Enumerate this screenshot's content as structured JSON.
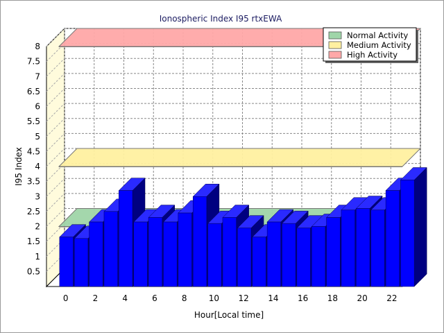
{
  "chart_data": {
    "type": "bar",
    "title": "Ionospheric Index I95 rtxEWA",
    "xlabel": "Hour[Local time]",
    "ylabel": "I95 Index",
    "ylim": [
      0,
      8
    ],
    "y_ticks": [
      "0.5",
      "1",
      "1.5",
      "2",
      "2.5",
      "3",
      "3.5",
      "4",
      "4.5",
      "5",
      "5.5",
      "6",
      "6.5",
      "7",
      "7.5",
      "8"
    ],
    "x_ticks": [
      "0",
      "2",
      "4",
      "6",
      "8",
      "10",
      "12",
      "14",
      "16",
      "18",
      "20",
      "22"
    ],
    "x": [
      0,
      1,
      2,
      3,
      4,
      5,
      6,
      7,
      8,
      9,
      10,
      11,
      12,
      13,
      14,
      15,
      16,
      17,
      18,
      19,
      20,
      21,
      22,
      23
    ],
    "values": [
      1.65,
      1.6,
      2.15,
      2.5,
      3.2,
      2.15,
      2.3,
      2.15,
      2.45,
      3.0,
      2.1,
      2.3,
      1.95,
      1.65,
      2.15,
      2.1,
      1.95,
      2.0,
      2.3,
      2.55,
      2.6,
      2.55,
      3.2,
      3.55
    ],
    "bar_color": "#0000ff",
    "grid": true,
    "legend_position": "top-right",
    "bands": [
      {
        "name": "Normal Activity",
        "value": 2.0,
        "color": "#9fd5a8"
      },
      {
        "name": "Medium Activity",
        "value": 4.0,
        "color": "#fff0a0"
      },
      {
        "name": "High Activity",
        "value": 8.0,
        "color": "#ffa8a8"
      }
    ]
  }
}
